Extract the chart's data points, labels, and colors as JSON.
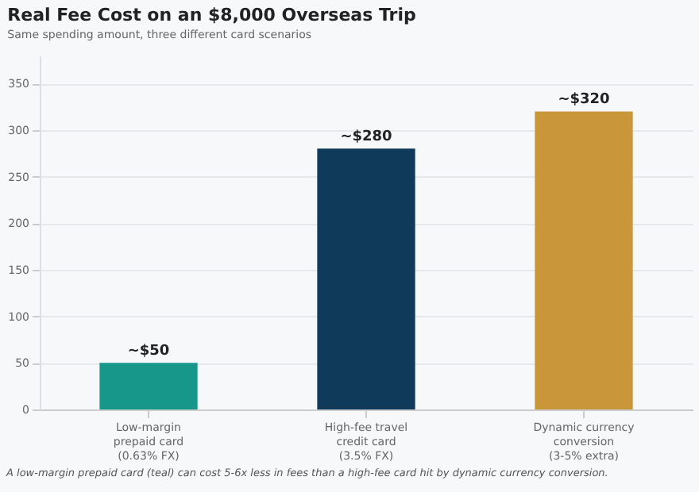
{
  "chart_data": {
    "type": "bar",
    "title": "Real Fee Cost on an $8,000 Overseas Trip",
    "subtitle": "Same spending amount, three different card scenarios",
    "categories": [
      "Low-margin\nprepaid card\n(0.63% FX)",
      "High-fee travel\ncredit card\n(3.5% FX)",
      "Dynamic currency\nconversion\n(3-5% extra)"
    ],
    "values": [
      50,
      280,
      320
    ],
    "colors": [
      "#16978a",
      "#0f3a5a",
      "#c9973a"
    ],
    "value_labels": [
      "~$50",
      "~$280",
      "~$320"
    ],
    "ylim": [
      0,
      380
    ],
    "yticks": [
      0,
      50,
      100,
      150,
      200,
      250,
      300,
      350
    ],
    "grid": "y",
    "annotations": [
      "A low-margin prepaid card (teal) can cost 5-6x less in fees than a high-fee card hit by dynamic currency conversion."
    ]
  }
}
